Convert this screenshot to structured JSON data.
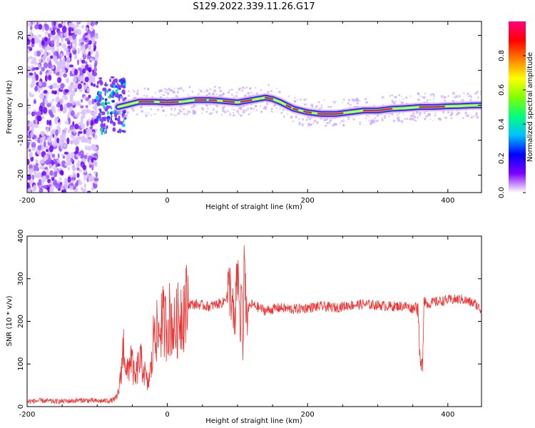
{
  "title": "S129.2022.339.11.26.G17",
  "chart_data": [
    {
      "type": "heatmap",
      "xlabel": "Height of straight line (km)",
      "ylabel": "Frequency (Hz)",
      "xlim": [
        -200,
        448
      ],
      "ylim": [
        -25,
        24
      ],
      "xticks": [
        -200,
        0,
        200,
        400
      ],
      "xtick_labels": [
        "-200",
        "0",
        "200",
        "400"
      ],
      "yticks": [
        -20,
        -10,
        0,
        10,
        20
      ],
      "ytick_labels": [
        "-20",
        "-10",
        "0",
        "10",
        "20"
      ],
      "colorbar": {
        "label": "Normalized spectral amplitude",
        "range": [
          0,
          1
        ],
        "ticks": [
          0,
          0.2,
          0.4,
          0.6,
          0.8
        ],
        "tick_labels": [
          "0.0",
          "0.2",
          "0.4",
          "0.6",
          "0.8"
        ],
        "colors": [
          "#ffffff",
          "#7f00ff",
          "#0000ff",
          "#00c0ff",
          "#00ff80",
          "#80ff00",
          "#ffff00",
          "#ff8000",
          "#ff0000",
          "#ff0080"
        ]
      },
      "ridge": {
        "x": [
          -70,
          -60,
          -50,
          -40,
          -30,
          -20,
          0,
          20,
          40,
          60,
          80,
          100,
          120,
          140,
          150,
          160,
          170,
          180,
          190,
          200,
          220,
          240,
          260,
          280,
          300,
          320,
          340,
          360,
          380,
          400,
          420,
          440
        ],
        "y": [
          -0.5,
          0,
          0.5,
          1,
          1,
          1,
          0.8,
          1,
          1.5,
          1.5,
          1.2,
          0.8,
          1.5,
          2.2,
          1.8,
          1,
          0,
          -1,
          -1.5,
          -2,
          -2.5,
          -2.5,
          -2,
          -1.5,
          -1.5,
          -1,
          -0.8,
          -0.5,
          -0.5,
          -0.3,
          -0.2,
          0
        ]
      },
      "noise_region_x": [
        -200,
        -100
      ]
    },
    {
      "type": "line",
      "xlabel": "Height of straight line (km)",
      "ylabel": "SNR (10 * v/v)",
      "xlim": [
        -200,
        448
      ],
      "ylim": [
        0,
        400
      ],
      "xticks": [
        -200,
        0,
        200,
        400
      ],
      "xtick_labels": [
        "-200",
        "0",
        "200",
        "400"
      ],
      "yticks": [
        0,
        100,
        200,
        300,
        400
      ],
      "ytick_labels": [
        "0",
        "100",
        "200",
        "300",
        "400"
      ],
      "color": "#ee3333",
      "series": [
        {
          "x": [
            -200,
            -180,
            -160,
            -140,
            -120,
            -100,
            -80,
            -72,
            -68,
            -62,
            -58,
            -52,
            -46,
            -40,
            -34,
            -28,
            -22,
            -18,
            -14,
            -8,
            -2,
            4,
            10,
            20,
            30,
            40,
            60,
            80,
            90,
            96,
            100,
            104,
            106,
            108,
            110,
            112,
            120,
            140,
            160,
            180,
            200,
            220,
            240,
            260,
            280,
            300,
            320,
            340,
            350,
            356,
            358,
            360,
            362,
            364,
            366,
            370,
            380,
            400,
            420,
            440,
            448
          ],
          "y": [
            12,
            14,
            12,
            13,
            15,
            13,
            14,
            20,
            50,
            150,
            70,
            120,
            60,
            110,
            90,
            50,
            100,
            210,
            160,
            200,
            190,
            210,
            180,
            225,
            240,
            240,
            235,
            245,
            280,
            170,
            330,
            180,
            300,
            90,
            400,
            220,
            240,
            225,
            232,
            228,
            232,
            235,
            232,
            238,
            240,
            238,
            235,
            236,
            230,
            240,
            220,
            110,
            90,
            100,
            260,
            240,
            245,
            250,
            252,
            240,
            225
          ]
        }
      ]
    }
  ]
}
